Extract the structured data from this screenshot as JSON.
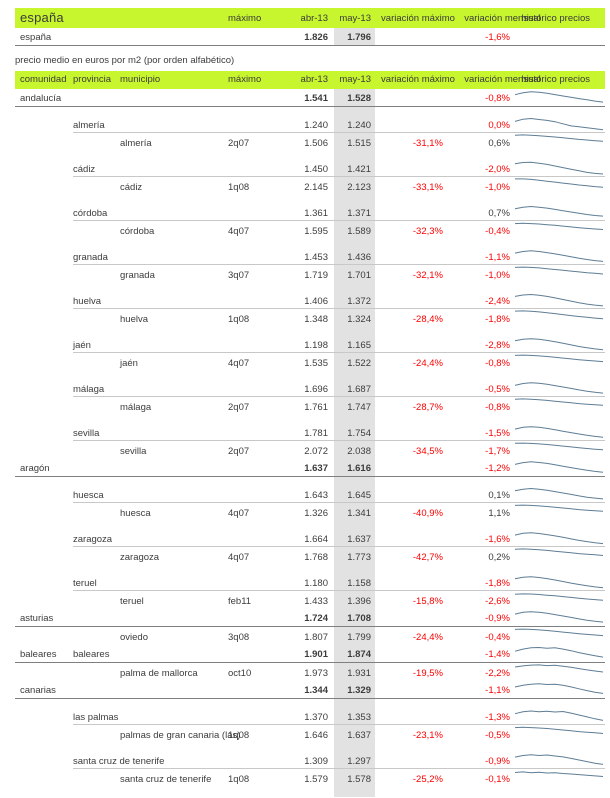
{
  "colors": {
    "header_bg": "#c7f52e",
    "gray_column": "#e2e2e2",
    "negative_text": "#fe0000",
    "text": "#3c3c3c",
    "sparkline": "#5e7d95"
  },
  "top": {
    "title": "españa",
    "headers": {
      "maximo": "máximo",
      "abr": "abr-13",
      "may": "may-13",
      "var_maximo": "variación máximo",
      "var_mensual": "variación mensual",
      "historico": "histórico precios"
    },
    "row": {
      "label": "españa",
      "abr": "1.826",
      "may": "1.796",
      "var_mensual": "-1,6%"
    }
  },
  "section_label": "precio medio en euros por m2 (por orden alfabético)",
  "table": {
    "headers": {
      "comunidad": "comunidad",
      "provincia": "provincia",
      "municipio": "municipio",
      "maximo": "máximo",
      "abr": "abr-13",
      "may": "may-13",
      "var_maximo": "variación máximo",
      "var_mensual": "variación mensual",
      "historico": "histórico precios"
    },
    "rows": [
      {
        "level": "comunidad",
        "gap": false,
        "comunidad": "andalucía",
        "provincia": "",
        "municipio": "",
        "maximo": "",
        "abr": "1.541",
        "may": "1.528",
        "var_maximo": "",
        "var_mensual": "-0,8%",
        "spark": [
          0.42,
          0.3,
          0.24,
          0.27,
          0.33,
          0.41,
          0.5,
          0.58,
          0.66,
          0.74,
          0.82,
          0.88
        ]
      },
      {
        "level": "provincia",
        "gap": true,
        "comunidad": "",
        "provincia": "almería",
        "municipio": "",
        "maximo": "",
        "abr": "1.240",
        "may": "1.240",
        "var_maximo": "",
        "var_mensual": "0,0%",
        "spark": [
          0.4,
          0.26,
          0.22,
          0.28,
          0.34,
          0.42,
          0.55,
          0.68,
          0.74,
          0.8,
          0.86,
          0.92
        ]
      },
      {
        "level": "municipio",
        "gap": false,
        "comunidad": "",
        "provincia": "",
        "municipio": "almería",
        "maximo": "2q07",
        "abr": "1.506",
        "may": "1.515",
        "var_maximo": "-31,1%",
        "var_mensual": "0,6%",
        "spark": [
          0.14,
          0.12,
          0.14,
          0.17,
          0.21,
          0.25,
          0.3,
          0.35,
          0.4,
          0.44,
          0.48,
          0.52
        ]
      },
      {
        "level": "provincia",
        "gap": true,
        "comunidad": "",
        "provincia": "cádiz",
        "municipio": "",
        "maximo": "",
        "abr": "1.450",
        "may": "1.421",
        "var_maximo": "",
        "var_mensual": "-2,0%",
        "spark": [
          0.3,
          0.22,
          0.2,
          0.26,
          0.34,
          0.44,
          0.54,
          0.64,
          0.74,
          0.84,
          0.9,
          0.94
        ]
      },
      {
        "level": "municipio",
        "gap": false,
        "comunidad": "",
        "provincia": "",
        "municipio": "cádiz",
        "maximo": "1q08",
        "abr": "2.145",
        "may": "2.123",
        "var_maximo": "-33,1%",
        "var_mensual": "-1,0%",
        "spark": [
          0.12,
          0.12,
          0.15,
          0.2,
          0.26,
          0.32,
          0.38,
          0.44,
          0.5,
          0.55,
          0.6,
          0.64
        ]
      },
      {
        "level": "provincia",
        "gap": true,
        "comunidad": "",
        "provincia": "córdoba",
        "municipio": "",
        "maximo": "",
        "abr": "1.361",
        "may": "1.371",
        "var_maximo": "",
        "var_mensual": "0,7%",
        "spark": [
          0.36,
          0.26,
          0.22,
          0.26,
          0.32,
          0.4,
          0.48,
          0.56,
          0.64,
          0.72,
          0.78,
          0.82
        ]
      },
      {
        "level": "municipio",
        "gap": false,
        "comunidad": "",
        "provincia": "",
        "municipio": "córdoba",
        "maximo": "4q07",
        "abr": "1.595",
        "may": "1.589",
        "var_maximo": "-32,3%",
        "var_mensual": "-0,4%",
        "spark": [
          0.16,
          0.14,
          0.16,
          0.19,
          0.23,
          0.27,
          0.32,
          0.37,
          0.42,
          0.46,
          0.5,
          0.53
        ]
      },
      {
        "level": "provincia",
        "gap": true,
        "comunidad": "",
        "provincia": "granada",
        "municipio": "",
        "maximo": "",
        "abr": "1.453",
        "may": "1.436",
        "var_maximo": "",
        "var_mensual": "-1,1%",
        "spark": [
          0.38,
          0.28,
          0.24,
          0.28,
          0.35,
          0.43,
          0.52,
          0.61,
          0.7,
          0.78,
          0.85,
          0.9
        ]
      },
      {
        "level": "municipio",
        "gap": false,
        "comunidad": "",
        "provincia": "",
        "municipio": "granada",
        "maximo": "3q07",
        "abr": "1.719",
        "may": "1.701",
        "var_maximo": "-32,1%",
        "var_mensual": "-1,0%",
        "spark": [
          0.15,
          0.13,
          0.15,
          0.18,
          0.23,
          0.28,
          0.33,
          0.38,
          0.43,
          0.48,
          0.52,
          0.56
        ]
      },
      {
        "level": "provincia",
        "gap": true,
        "comunidad": "",
        "provincia": "huelva",
        "municipio": "",
        "maximo": "",
        "abr": "1.406",
        "may": "1.372",
        "var_maximo": "",
        "var_mensual": "-2,4%",
        "spark": [
          0.34,
          0.25,
          0.22,
          0.27,
          0.34,
          0.43,
          0.53,
          0.63,
          0.73,
          0.82,
          0.88,
          0.93
        ]
      },
      {
        "level": "municipio",
        "gap": false,
        "comunidad": "",
        "provincia": "",
        "municipio": "huelva",
        "maximo": "1q08",
        "abr": "1.348",
        "may": "1.324",
        "var_maximo": "-28,4%",
        "var_mensual": "-1,8%",
        "spark": [
          0.13,
          0.12,
          0.14,
          0.18,
          0.23,
          0.29,
          0.35,
          0.41,
          0.47,
          0.52,
          0.57,
          0.61
        ]
      },
      {
        "level": "provincia",
        "gap": true,
        "comunidad": "",
        "provincia": "jaén",
        "municipio": "",
        "maximo": "",
        "abr": "1.198",
        "may": "1.165",
        "var_maximo": "",
        "var_mensual": "-2,8%",
        "spark": [
          0.36,
          0.27,
          0.23,
          0.27,
          0.34,
          0.42,
          0.52,
          0.62,
          0.72,
          0.8,
          0.87,
          0.92
        ]
      },
      {
        "level": "municipio",
        "gap": false,
        "comunidad": "",
        "provincia": "",
        "municipio": "jaén",
        "maximo": "4q07",
        "abr": "1.535",
        "may": "1.522",
        "var_maximo": "-24,4%",
        "var_mensual": "-0,8%",
        "spark": [
          0.15,
          0.13,
          0.15,
          0.18,
          0.22,
          0.27,
          0.32,
          0.37,
          0.42,
          0.46,
          0.5,
          0.54
        ]
      },
      {
        "level": "provincia",
        "gap": true,
        "comunidad": "",
        "provincia": "málaga",
        "municipio": "",
        "maximo": "",
        "abr": "1.696",
        "may": "1.687",
        "var_maximo": "",
        "var_mensual": "-0,5%",
        "spark": [
          0.4,
          0.28,
          0.23,
          0.27,
          0.33,
          0.41,
          0.5,
          0.59,
          0.68,
          0.76,
          0.83,
          0.88
        ]
      },
      {
        "level": "municipio",
        "gap": false,
        "comunidad": "",
        "provincia": "",
        "municipio": "málaga",
        "maximo": "2q07",
        "abr": "1.761",
        "may": "1.747",
        "var_maximo": "-28,7%",
        "var_mensual": "-0,8%",
        "spark": [
          0.14,
          0.12,
          0.14,
          0.17,
          0.21,
          0.26,
          0.31,
          0.36,
          0.41,
          0.45,
          0.49,
          0.52
        ]
      },
      {
        "level": "provincia",
        "gap": true,
        "comunidad": "",
        "provincia": "sevilla",
        "municipio": "",
        "maximo": "",
        "abr": "1.781",
        "may": "1.754",
        "var_maximo": "",
        "var_mensual": "-1,5%",
        "spark": [
          0.38,
          0.27,
          0.23,
          0.27,
          0.34,
          0.42,
          0.51,
          0.6,
          0.69,
          0.77,
          0.84,
          0.89
        ]
      },
      {
        "level": "municipio",
        "gap": false,
        "comunidad": "",
        "provincia": "",
        "municipio": "sevilla",
        "maximo": "2q07",
        "abr": "2.072",
        "may": "2.038",
        "var_maximo": "-34,5%",
        "var_mensual": "-1,7%",
        "spark": [
          0.14,
          0.13,
          0.15,
          0.18,
          0.22,
          0.27,
          0.32,
          0.37,
          0.42,
          0.47,
          0.51,
          0.55
        ]
      },
      {
        "level": "comunidad",
        "gap": false,
        "comunidad": "aragón",
        "provincia": "",
        "municipio": "",
        "maximo": "",
        "abr": "1.637",
        "may": "1.616",
        "var_maximo": "",
        "var_mensual": "-1,2%",
        "spark": [
          0.4,
          0.29,
          0.24,
          0.28,
          0.34,
          0.42,
          0.51,
          0.6,
          0.69,
          0.77,
          0.84,
          0.89
        ]
      },
      {
        "level": "provincia",
        "gap": true,
        "comunidad": "",
        "provincia": "huesca",
        "municipio": "",
        "maximo": "",
        "abr": "1.643",
        "may": "1.645",
        "var_maximo": "",
        "var_mensual": "0,1%",
        "spark": [
          0.36,
          0.26,
          0.22,
          0.26,
          0.33,
          0.41,
          0.5,
          0.59,
          0.68,
          0.76,
          0.82,
          0.87
        ]
      },
      {
        "level": "municipio",
        "gap": false,
        "comunidad": "",
        "provincia": "",
        "municipio": "huesca",
        "maximo": "4q07",
        "abr": "1.326",
        "may": "1.341",
        "var_maximo": "-40,9%",
        "var_mensual": "1,1%",
        "spark": [
          0.15,
          0.13,
          0.15,
          0.18,
          0.22,
          0.26,
          0.31,
          0.36,
          0.41,
          0.45,
          0.49,
          0.52
        ]
      },
      {
        "level": "provincia",
        "gap": true,
        "comunidad": "",
        "provincia": "zaragoza",
        "municipio": "",
        "maximo": "",
        "abr": "1.664",
        "may": "1.637",
        "var_maximo": "",
        "var_mensual": "-1,6%",
        "spark": [
          0.38,
          0.27,
          0.23,
          0.28,
          0.35,
          0.43,
          0.52,
          0.62,
          0.71,
          0.79,
          0.86,
          0.91
        ]
      },
      {
        "level": "municipio",
        "gap": false,
        "comunidad": "",
        "provincia": "",
        "municipio": "zaragoza",
        "maximo": "4q07",
        "abr": "1.768",
        "may": "1.773",
        "var_maximo": "-42,7%",
        "var_mensual": "0,2%",
        "spark": [
          0.14,
          0.12,
          0.14,
          0.17,
          0.21,
          0.26,
          0.31,
          0.36,
          0.41,
          0.45,
          0.49,
          0.53
        ]
      },
      {
        "level": "provincia",
        "gap": true,
        "comunidad": "",
        "provincia": "teruel",
        "municipio": "",
        "maximo": "",
        "abr": "1.180",
        "may": "1.158",
        "var_maximo": "",
        "var_mensual": "-1,8%",
        "spark": [
          0.36,
          0.26,
          0.23,
          0.28,
          0.35,
          0.44,
          0.53,
          0.63,
          0.72,
          0.8,
          0.87,
          0.92
        ]
      },
      {
        "level": "municipio",
        "gap": false,
        "comunidad": "",
        "provincia": "",
        "municipio": "teruel",
        "maximo": "feb11",
        "abr": "1.433",
        "may": "1.396",
        "var_maximo": "-15,8%",
        "var_mensual": "-2,6%",
        "spark": [
          0.2,
          0.18,
          0.19,
          0.22,
          0.26,
          0.3,
          0.35,
          0.4,
          0.45,
          0.5,
          0.54,
          0.58
        ]
      },
      {
        "level": "comunidad",
        "gap": false,
        "comunidad": "asturias",
        "provincia": "",
        "municipio": "",
        "maximo": "",
        "abr": "1.724",
        "may": "1.708",
        "var_maximo": "",
        "var_mensual": "-0,9%",
        "spark": [
          0.38,
          0.27,
          0.23,
          0.27,
          0.33,
          0.41,
          0.5,
          0.59,
          0.68,
          0.76,
          0.83,
          0.88
        ]
      },
      {
        "level": "municipio",
        "gap": false,
        "comunidad": "",
        "provincia": "",
        "municipio": "oviedo",
        "maximo": "3q08",
        "abr": "1.807",
        "may": "1.799",
        "var_maximo": "-24,4%",
        "var_mensual": "-0,4%",
        "spark": [
          0.15,
          0.13,
          0.15,
          0.18,
          0.22,
          0.27,
          0.32,
          0.37,
          0.42,
          0.46,
          0.5,
          0.54
        ]
      },
      {
        "level": "comunidad",
        "gap": false,
        "comunidad": "baleares",
        "provincia": "baleares",
        "municipio": "",
        "maximo": "",
        "abr": "1.901",
        "may": "1.874",
        "var_maximo": "",
        "var_mensual": "-1,4%",
        "spark": [
          0.45,
          0.32,
          0.24,
          0.22,
          0.27,
          0.24,
          0.32,
          0.42,
          0.54,
          0.64,
          0.74,
          0.82
        ]
      },
      {
        "level": "municipio",
        "gap": false,
        "comunidad": "",
        "provincia": "",
        "municipio": "palma de mallorca",
        "maximo": "oct10",
        "abr": "1.973",
        "may": "1.931",
        "var_maximo": "-19,5%",
        "var_mensual": "-2,2%",
        "spark": [
          0.25,
          0.18,
          0.13,
          0.12,
          0.16,
          0.14,
          0.2,
          0.27,
          0.35,
          0.43,
          0.5,
          0.56
        ]
      },
      {
        "level": "comunidad",
        "gap": false,
        "comunidad": "canarias",
        "provincia": "",
        "municipio": "",
        "maximo": "",
        "abr": "1.344",
        "may": "1.329",
        "var_maximo": "",
        "var_mensual": "-1,1%",
        "spark": [
          0.44,
          0.33,
          0.26,
          0.24,
          0.28,
          0.26,
          0.33,
          0.43,
          0.55,
          0.66,
          0.76,
          0.84
        ]
      },
      {
        "level": "provincia",
        "gap": true,
        "comunidad": "",
        "provincia": "las palmas",
        "municipio": "",
        "maximo": "",
        "abr": "1.370",
        "may": "1.353",
        "var_maximo": "",
        "var_mensual": "-1,3%",
        "spark": [
          0.42,
          0.3,
          0.25,
          0.3,
          0.26,
          0.31,
          0.28,
          0.38,
          0.5,
          0.62,
          0.74,
          0.84
        ]
      },
      {
        "level": "municipio",
        "gap": false,
        "comunidad": "",
        "provincia": "",
        "municipio": "palmas de gran canaria (las)",
        "maximo": "1q08",
        "abr": "1.646",
        "may": "1.637",
        "var_maximo": "-23,1%",
        "var_mensual": "-0,5%",
        "spark": [
          0.16,
          0.14,
          0.16,
          0.19,
          0.22,
          0.26,
          0.31,
          0.36,
          0.41,
          0.45,
          0.49,
          0.53
        ]
      },
      {
        "level": "provincia",
        "gap": true,
        "comunidad": "",
        "provincia": "santa cruz de tenerife",
        "municipio": "",
        "maximo": "",
        "abr": "1.309",
        "may": "1.297",
        "var_maximo": "",
        "var_mensual": "-0,9%",
        "spark": [
          0.38,
          0.28,
          0.24,
          0.28,
          0.25,
          0.31,
          0.37,
          0.46,
          0.56,
          0.66,
          0.76,
          0.84
        ]
      },
      {
        "level": "municipio",
        "gap": false,
        "comunidad": "",
        "provincia": "",
        "municipio": "santa cruz de tenerife",
        "maximo": "1q08",
        "abr": "1.579",
        "may": "1.578",
        "var_maximo": "-25,2%",
        "var_mensual": "-0,1%",
        "spark": [
          0.22,
          0.18,
          0.23,
          0.2,
          0.25,
          0.23,
          0.28,
          0.31,
          0.35,
          0.39,
          0.43,
          0.47
        ]
      }
    ]
  }
}
